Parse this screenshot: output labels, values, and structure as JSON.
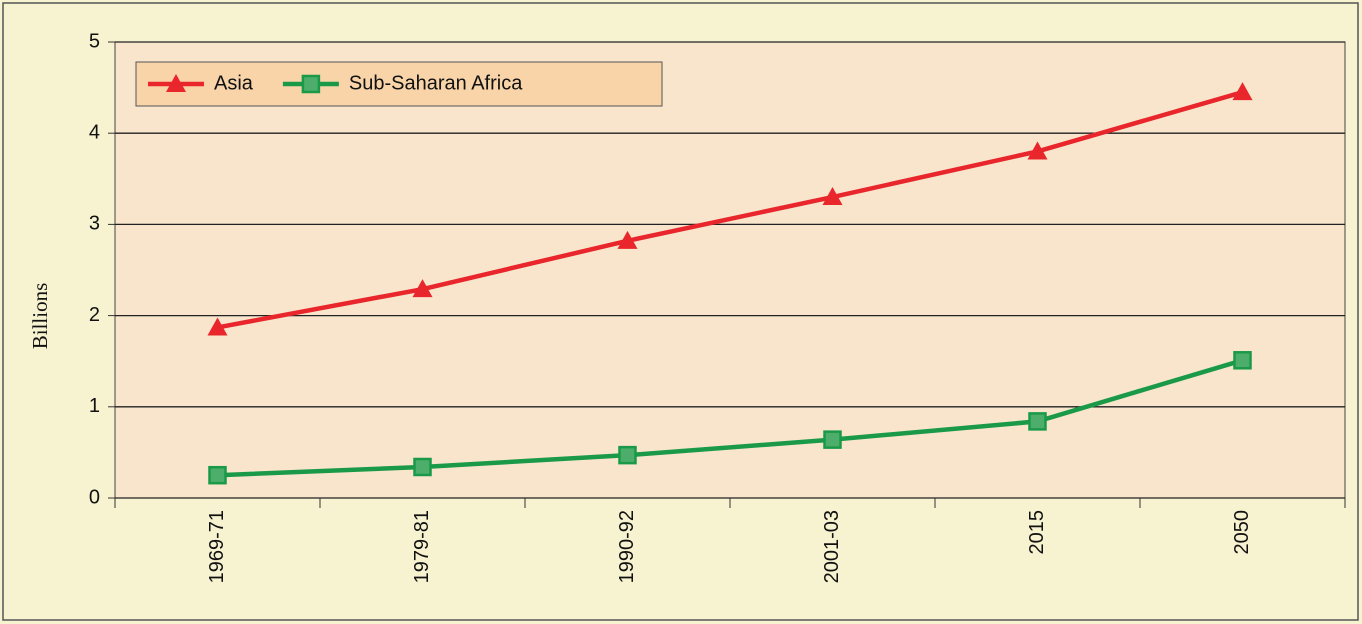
{
  "chart_data": {
    "type": "line",
    "y_label": "Billions",
    "categories": [
      "1969-71",
      "1979-81",
      "1990-92",
      "2001-03",
      "2015",
      "2050"
    ],
    "series": [
      {
        "name": "Asia",
        "color": "#e8262b",
        "marker": "triangle",
        "values": [
          1.87,
          2.29,
          2.82,
          3.3,
          3.8,
          4.45
        ]
      },
      {
        "name": "Sub-Saharan Africa",
        "color": "#1a9a48",
        "marker": "square",
        "values": [
          0.25,
          0.34,
          0.47,
          0.64,
          0.84,
          1.51
        ]
      }
    ],
    "ylim": [
      0,
      5
    ],
    "yticks": [
      0,
      1,
      2,
      3,
      4,
      5
    ],
    "grid": true,
    "legend": "upper left"
  }
}
